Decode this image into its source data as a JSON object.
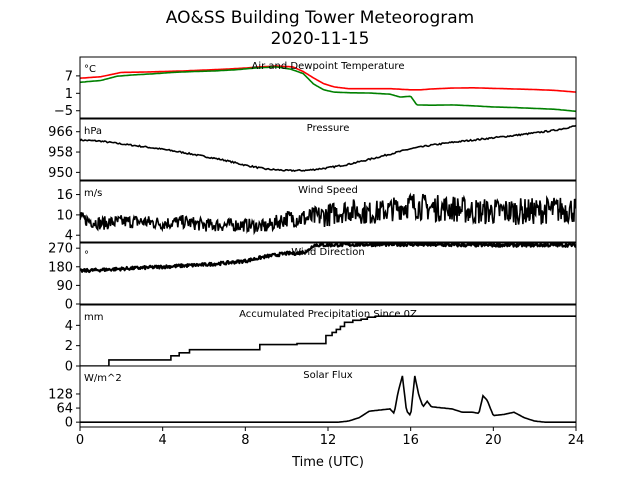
{
  "figure": {
    "title_line1": "AO&SS Building Tower Meteorogram",
    "title_line2": "2020-11-15",
    "xlabel": "Time (UTC)"
  },
  "colors": {
    "red": "#ff0000",
    "green": "#008000",
    "black": "#000000"
  },
  "chart_data": [
    {
      "type": "line",
      "title": "Air and Dewpoint Temperature",
      "unit_label": "°C",
      "xlim": [
        0,
        24
      ],
      "ylim": [
        -7.5,
        13.5
      ],
      "yticks": [
        -5,
        1,
        7
      ],
      "ytick_labels": [
        "−5",
        "1",
        "7"
      ],
      "series": [
        {
          "color": "red",
          "x": [
            0,
            1,
            2,
            3,
            4,
            5,
            6,
            7,
            8,
            8.7,
            9.5,
            10.3,
            10.8,
            11.3,
            11.8,
            12.3,
            13,
            14,
            15,
            16,
            16.5,
            17,
            18,
            19,
            20,
            21,
            22,
            23,
            24
          ],
          "y": [
            6.2,
            6.7,
            8.2,
            8.3,
            8.5,
            8.7,
            9.0,
            9.3,
            9.7,
            10.1,
            10.4,
            10.1,
            8.5,
            6.3,
            4.3,
            3.2,
            2.6,
            2.6,
            2.6,
            2.2,
            2.2,
            2.5,
            2.8,
            2.9,
            2.7,
            2.5,
            2.3,
            2.0,
            1.4
          ]
        },
        {
          "color": "green",
          "x": [
            0,
            1,
            1.8,
            2.5,
            3.5,
            4.5,
            5.5,
            6.5,
            7.5,
            8.5,
            9.5,
            10.2,
            10.8,
            11.3,
            11.8,
            12.3,
            13,
            14,
            15,
            15.5,
            16,
            16.3,
            17,
            18,
            19,
            20,
            21,
            22,
            23,
            24
          ],
          "y": [
            4.8,
            5.4,
            6.9,
            7.3,
            7.7,
            8.2,
            8.5,
            8.7,
            9.1,
            9.7,
            10.1,
            9.3,
            7.8,
            4.2,
            2.2,
            1.4,
            1.2,
            1.1,
            0.7,
            -0.3,
            0.0,
            -3.0,
            -3.1,
            -3.0,
            -3.3,
            -3.7,
            -3.9,
            -4.2,
            -4.5,
            -5.2
          ]
        }
      ]
    },
    {
      "type": "line",
      "title": "Pressure",
      "unit_label": "hPa",
      "xlim": [
        0,
        24
      ],
      "ylim": [
        947,
        971
      ],
      "yticks": [
        950,
        958,
        966
      ],
      "ytick_labels": [
        "950",
        "958",
        "966"
      ],
      "series": [
        {
          "color": "black",
          "x": [
            0,
            1,
            2,
            3,
            4,
            5,
            6,
            7,
            8,
            9,
            10,
            11,
            12,
            13,
            14,
            15,
            16,
            17,
            18,
            19,
            20,
            21,
            22,
            23,
            24
          ],
          "y": [
            962.7,
            962.3,
            961.2,
            960.2,
            959.1,
            957.8,
            956.3,
            954.8,
            952.8,
            951.3,
            950.7,
            950.8,
            951.8,
            953.2,
            955.1,
            957.2,
            959.3,
            960.7,
            961.8,
            962.7,
            963.6,
            964.5,
            965.5,
            966.6,
            968.3
          ]
        }
      ]
    },
    {
      "type": "line",
      "title": "Wind Speed",
      "unit_label": "m/s",
      "xlim": [
        0,
        24
      ],
      "ylim": [
        2,
        20
      ],
      "yticks": [
        4,
        10,
        16
      ],
      "ytick_labels": [
        "4",
        "10",
        "16"
      ],
      "series": [
        {
          "color": "black",
          "x": [
            0,
            1,
            2,
            3,
            4,
            5,
            6,
            7,
            8,
            9,
            10,
            11,
            12,
            13,
            14,
            15,
            16,
            17,
            18,
            19,
            20,
            21,
            22,
            23,
            24
          ],
          "y": [
            9,
            7.5,
            8,
            8,
            7.5,
            8,
            7,
            7,
            7,
            6.5,
            9,
            9,
            10,
            11.5,
            10.5,
            11.5,
            13,
            12,
            12,
            11,
            11,
            11,
            11,
            11.5,
            11.5
          ],
          "noise": [
            2,
            2,
            2,
            2,
            2,
            2,
            2,
            2,
            2,
            2,
            2.5,
            3,
            3.5,
            3.5,
            3.5,
            3.5,
            4,
            4,
            4,
            4,
            4,
            4,
            4,
            4,
            4
          ]
        }
      ]
    },
    {
      "type": "scatter",
      "title": "Wind Direction",
      "unit_label": "°",
      "xlim": [
        0,
        24
      ],
      "ylim": [
        0,
        295
      ],
      "yticks": [
        0,
        90,
        180,
        270
      ],
      "ytick_labels": [
        "0",
        "90",
        "180",
        "270"
      ],
      "series": [
        {
          "color": "black",
          "x": [
            0,
            1,
            2,
            3,
            4,
            5,
            6,
            7,
            8,
            9,
            10,
            10.5,
            11,
            11.3,
            12,
            14,
            16,
            18,
            20,
            22,
            24
          ],
          "y": [
            160,
            165,
            170,
            175,
            180,
            185,
            190,
            198,
            208,
            230,
            245,
            245,
            255,
            285,
            285,
            288,
            288,
            285,
            285,
            285,
            285
          ],
          "noise": 8
        }
      ]
    },
    {
      "type": "line",
      "title": "Accumulated Precipitation Since 0Z",
      "unit_label": "mm",
      "xlim": [
        0,
        24
      ],
      "ylim": [
        0,
        6
      ],
      "yticks": [
        0,
        2,
        4
      ],
      "ytick_labels": [
        "0",
        "2",
        "4"
      ],
      "series": [
        {
          "color": "black",
          "step": true,
          "x": [
            0,
            1.4,
            4.4,
            4.8,
            5.3,
            8.7,
            10.5,
            11.9,
            12.2,
            12.4,
            12.6,
            12.8,
            13.2,
            13.6,
            13.9,
            14.3,
            24
          ],
          "y": [
            0,
            0.6,
            1.0,
            1.3,
            1.6,
            2.1,
            2.2,
            3.0,
            3.3,
            3.6,
            3.9,
            4.3,
            4.5,
            4.6,
            4.8,
            4.9,
            4.9
          ]
        }
      ]
    },
    {
      "type": "line",
      "title": "Solar Flux",
      "unit_label": "W/m^2",
      "xlim": [
        0,
        24
      ],
      "ylim": [
        -22,
        255
      ],
      "yticks": [
        0,
        64,
        128
      ],
      "ytick_labels": [
        "0",
        "64",
        "128"
      ],
      "series": [
        {
          "color": "black",
          "x": [
            0,
            12.5,
            13,
            13.5,
            14,
            14.5,
            15,
            15.2,
            15.4,
            15.6,
            15.8,
            16,
            16.2,
            16.4,
            16.6,
            16.8,
            17,
            17.5,
            18,
            18.5,
            19,
            19.3,
            19.5,
            19.7,
            20,
            20.5,
            21,
            21.5,
            22,
            22.5,
            23,
            24
          ],
          "y": [
            0,
            0,
            5,
            20,
            50,
            55,
            60,
            40,
            140,
            210,
            50,
            30,
            210,
            120,
            70,
            95,
            70,
            65,
            60,
            45,
            45,
            40,
            120,
            100,
            30,
            35,
            45,
            20,
            5,
            0,
            0,
            0
          ]
        }
      ]
    }
  ]
}
